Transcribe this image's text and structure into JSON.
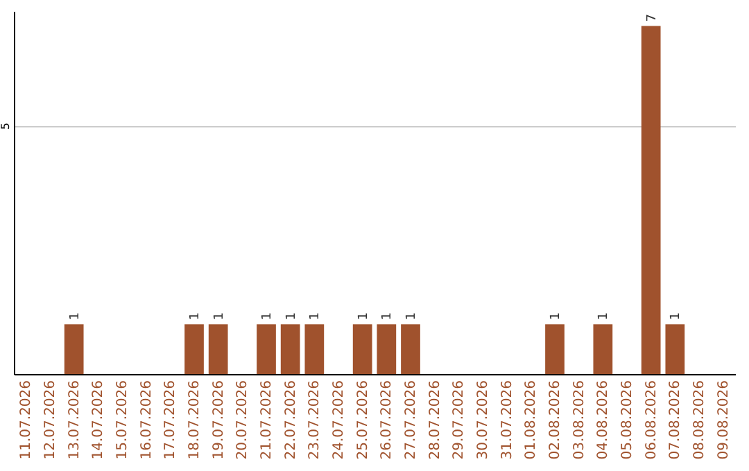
{
  "chart_data": {
    "type": "bar",
    "categories": [
      "11.07.2026",
      "12.07.2026",
      "13.07.2026",
      "14.07.2026",
      "15.07.2026",
      "16.07.2026",
      "17.07.2026",
      "18.07.2026",
      "19.07.2026",
      "20.07.2026",
      "21.07.2026",
      "22.07.2026",
      "23.07.2026",
      "24.07.2026",
      "25.07.2026",
      "26.07.2026",
      "27.07.2026",
      "28.07.2026",
      "29.07.2026",
      "30.07.2026",
      "31.07.2026",
      "01.08.2026",
      "02.08.2026",
      "03.08.2026",
      "04.08.2026",
      "05.08.2026",
      "06.08.2026",
      "07.08.2026",
      "08.08.2026",
      "09.08.2026"
    ],
    "values": [
      null,
      null,
      1,
      null,
      null,
      null,
      null,
      1,
      1,
      null,
      1,
      1,
      1,
      null,
      1,
      1,
      1,
      null,
      null,
      null,
      null,
      null,
      1,
      null,
      1,
      null,
      7,
      1,
      null,
      null
    ],
    "color": "#a0522d",
    "ylim": [
      0,
      7.3
    ],
    "yticks": [
      5
    ],
    "grid": "y",
    "data_labels": true
  }
}
